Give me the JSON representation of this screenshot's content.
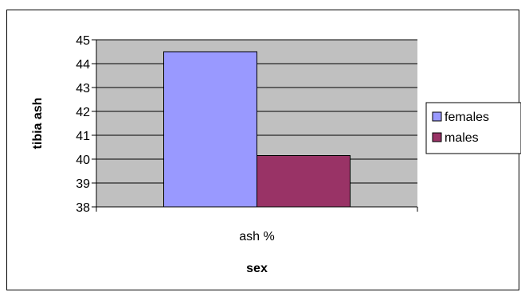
{
  "chart_data": {
    "type": "bar",
    "categories": [
      "ash %"
    ],
    "series": [
      {
        "name": "females",
        "values": [
          44.5
        ],
        "color": "#9999ff"
      },
      {
        "name": "males",
        "values": [
          40.15
        ],
        "color": "#993366"
      }
    ],
    "xlabel": "sex",
    "ylabel": "tibia ash",
    "ylim": [
      38,
      45
    ],
    "yticks": [
      "38",
      "39",
      "40",
      "41",
      "42",
      "43",
      "44",
      "45"
    ],
    "grid": true,
    "plot_background": "#c0c0c0",
    "legend_position": "right"
  }
}
